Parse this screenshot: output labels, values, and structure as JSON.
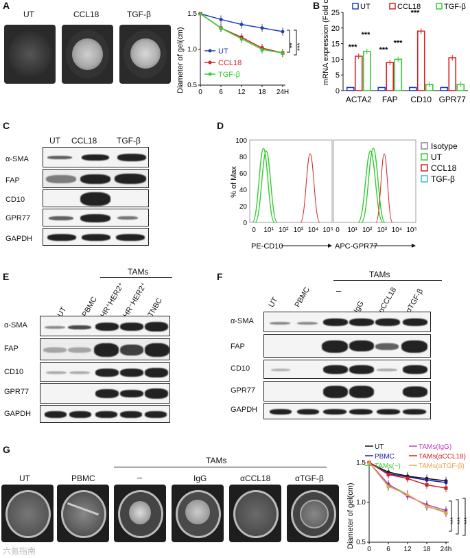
{
  "panel_letters": [
    "A",
    "B",
    "C",
    "D",
    "E",
    "F",
    "G"
  ],
  "panelA": {
    "dish_labels": [
      "UT",
      "CCL18",
      "TGF-β"
    ],
    "chart": {
      "ylabel": "Diameter of gel(cm)",
      "xticks": [
        "0",
        "6",
        "12",
        "18",
        "24H"
      ],
      "yticks": [
        "0.5",
        "1.0",
        "1.5"
      ],
      "legend": [
        "UT",
        "CCL18",
        "TGF-β"
      ],
      "sig": [
        "**",
        "***"
      ]
    }
  },
  "panelB": {
    "legend": [
      "UT",
      "CCL18",
      "TGF-β"
    ],
    "ylabel": "mRNA expression (Fold change)",
    "yticks": [
      "0",
      "5",
      "10",
      "15",
      "20",
      "25"
    ],
    "categories": [
      "ACTA2",
      "FAP",
      "CD10",
      "GPR77"
    ],
    "sig": [
      "***",
      "***",
      "***",
      "***",
      "***"
    ]
  },
  "panelC": {
    "columns": [
      "UT",
      "CCL18",
      "TGF-β"
    ],
    "rows": [
      "α-SMA",
      "FAP",
      "CD10",
      "GPR77",
      "GAPDH"
    ]
  },
  "panelD": {
    "ylabel": "% of Max",
    "yticks": [
      "100",
      "80",
      "60",
      "40",
      "20",
      "0"
    ],
    "xticks": [
      "0",
      "10¹",
      "10²",
      "10³",
      "10⁴",
      "10⁵"
    ],
    "xlabels": [
      "PE-CD10",
      "APC-GPR77"
    ],
    "legend": [
      "Isotype",
      "UT",
      "CCL18",
      "TGF-β"
    ]
  },
  "panelE": {
    "group": "TAMs",
    "columns": [
      "UT",
      "PBMC",
      "HR⁺HER2⁺",
      "HR⁻HER2⁺",
      "TNBC"
    ],
    "rows": [
      "α-SMA",
      "FAP",
      "CD10",
      "GPR77",
      "GAPDH"
    ]
  },
  "panelF": {
    "group": "TAMs",
    "columns": [
      "UT",
      "PBMC",
      "–",
      "IgG",
      "αCCL18",
      "αTGF-β"
    ],
    "rows": [
      "α-SMA",
      "FAP",
      "CD10",
      "GPR77",
      "GAPDH"
    ]
  },
  "panelG": {
    "group": "TAMs",
    "dish_labels": [
      "UT",
      "PBMC",
      "–",
      "IgG",
      "αCCL18",
      "αTGF-β"
    ],
    "chart": {
      "ylabel": "Diameter of gel(cm)",
      "xticks": [
        "0",
        "6",
        "12",
        "18",
        "24h"
      ],
      "yticks": [
        "0.5",
        "1.0",
        "1.5"
      ],
      "legend": [
        "UT",
        "PBMC",
        "TAMs(−)",
        "TAMs(IgG)",
        "TAMs(αCCL18)",
        "TAMs(αTGF-β)"
      ],
      "sig": [
        "***",
        "***",
        "***"
      ]
    }
  },
  "watermark": "六氪指南",
  "colors": {
    "ut": "#1f3fb8",
    "ccl18": "#d62020",
    "tgf": "#33cc33",
    "black": "#111111",
    "pbmc": "#1a1aa6",
    "tams_igg": "#c040c0",
    "tams_accl18": "#d62020",
    "tams_atgf": "#f0a050",
    "isotype": "#888888",
    "d_tgf": "#33c0d0"
  },
  "chart_data": [
    {
      "type": "line",
      "x": [
        0,
        6,
        12,
        18,
        24
      ],
      "series": [
        {
          "name": "UT",
          "values": [
            1.5,
            1.42,
            1.35,
            1.3,
            1.25
          ]
        },
        {
          "name": "CCL18",
          "values": [
            1.5,
            1.3,
            1.17,
            1.02,
            0.95
          ]
        },
        {
          "name": "TGF-β",
          "values": [
            1.5,
            1.3,
            1.15,
            1.0,
            0.95
          ]
        }
      ],
      "ylabel": "Diameter of gel(cm)",
      "ylim": [
        0.5,
        1.5
      ],
      "xlim": [
        0,
        24
      ]
    },
    {
      "type": "bar",
      "categories": [
        "ACTA2",
        "FAP",
        "CD10",
        "GPR77"
      ],
      "series": [
        {
          "name": "UT",
          "values": [
            1,
            1,
            1,
            1
          ]
        },
        {
          "name": "CCL18",
          "values": [
            11,
            9,
            19,
            10.5
          ]
        },
        {
          "name": "TGF-β",
          "values": [
            12.5,
            10,
            2,
            2
          ]
        }
      ],
      "ylabel": "mRNA expression (Fold change)",
      "ylim": [
        0,
        25
      ]
    },
    {
      "type": "line",
      "x": [
        0,
        6,
        12,
        18,
        24
      ],
      "series": [
        {
          "name": "UT",
          "values": [
            1.5,
            1.38,
            1.33,
            1.3,
            1.27
          ]
        },
        {
          "name": "PBMC",
          "values": [
            1.5,
            1.36,
            1.32,
            1.28,
            1.25
          ]
        },
        {
          "name": "TAMs(−)",
          "values": [
            1.5,
            1.22,
            1.1,
            0.95,
            0.88
          ]
        },
        {
          "name": "TAMs(IgG)",
          "values": [
            1.5,
            1.23,
            1.08,
            0.97,
            0.9
          ]
        },
        {
          "name": "TAMs(αCCL18)",
          "values": [
            1.5,
            1.35,
            1.3,
            1.22,
            1.18
          ]
        },
        {
          "name": "TAMs(αTGF-β)",
          "values": [
            1.5,
            1.2,
            1.1,
            0.95,
            0.87
          ]
        }
      ],
      "ylabel": "Diameter of gel(cm)",
      "ylim": [
        0.5,
        1.5
      ],
      "xlim": [
        0,
        24
      ]
    }
  ]
}
